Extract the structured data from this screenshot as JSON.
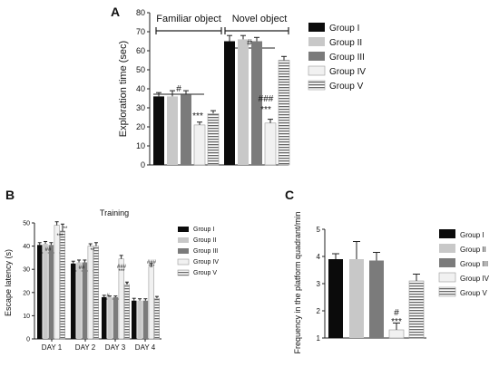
{
  "figure": {
    "panel_labels": [
      "A",
      "B",
      "C"
    ],
    "group_colors": [
      "#0b0b0b",
      "#c8c8c8",
      "#7b7b7b",
      "#f1f1f1",
      "#d6d6d6"
    ]
  },
  "chart_data": [
    {
      "type": "bar",
      "panel": "A",
      "ylabel": "Exploration time (sec)",
      "ylim": [
        0,
        80
      ],
      "yticks": [
        "0",
        "10",
        "20",
        "30",
        "40",
        "50",
        "60",
        "70",
        "80"
      ],
      "categories": [
        "Familiar object",
        "Novel object"
      ],
      "legend": [
        "Group I",
        "Group II",
        "Group III",
        "Group IV",
        "Group V"
      ],
      "legend_position": "right",
      "series": [
        {
          "name": "Group I",
          "values": [
            36,
            65
          ],
          "errors": [
            2,
            3
          ]
        },
        {
          "name": "Group II",
          "values": [
            36,
            66
          ],
          "errors": [
            3,
            2
          ]
        },
        {
          "name": "Group III",
          "values": [
            37,
            65
          ],
          "errors": [
            2,
            2
          ]
        },
        {
          "name": "Group IV",
          "values": [
            21,
            22
          ],
          "errors": [
            1.5,
            2
          ]
        },
        {
          "name": "Group V",
          "values": [
            27,
            55
          ],
          "errors": [
            1.5,
            2
          ]
        }
      ],
      "annotations": [
        {
          "text": "#",
          "group": 0
        },
        {
          "text": "***",
          "group": 0
        },
        {
          "text": "#",
          "group": 1
        },
        {
          "text": "###",
          "group": 1
        },
        {
          "text": "***",
          "group": 1
        }
      ]
    },
    {
      "type": "bar",
      "panel": "B",
      "title": "Training",
      "ylabel": "Escape latency (s)",
      "ylim": [
        0,
        50
      ],
      "yticks": [
        "0",
        "10",
        "20",
        "30",
        "40",
        "50"
      ],
      "categories": [
        "DAY 1",
        "DAY 2",
        "DAY 3",
        "DAY 4"
      ],
      "legend": [
        "Group I",
        "Group II",
        "Group III",
        "Group IV",
        "Group V"
      ],
      "legend_position": "right",
      "series": [
        {
          "name": "Group I",
          "values": [
            40.5,
            32.5,
            18,
            16.5
          ],
          "errors": [
            1,
            1,
            0.8,
            1
          ]
        },
        {
          "name": "Group II",
          "values": [
            41,
            33,
            18,
            16.5
          ],
          "errors": [
            1,
            1,
            0.5,
            0.8
          ]
        },
        {
          "name": "Group III",
          "values": [
            40.5,
            33,
            18,
            16.5
          ],
          "errors": [
            1,
            1,
            0.5,
            0.8
          ]
        },
        {
          "name": "Group IV",
          "values": [
            49,
            40,
            34.5,
            31
          ],
          "errors": [
            1.5,
            1,
            1.5,
            1.5
          ]
        },
        {
          "name": "Group V",
          "values": [
            46.5,
            40,
            23.5,
            17.5
          ],
          "errors": [
            3,
            1.5,
            1,
            0.8
          ]
        }
      ],
      "annotations": [
        {
          "text": "##",
          "group": 0
        },
        {
          "text": "***",
          "group": 0
        },
        {
          "text": "**",
          "group": 0
        },
        {
          "text": "##",
          "group": 1
        },
        {
          "text": "**",
          "group": 1
        },
        {
          "text": "#",
          "group": 2
        },
        {
          "text": "###",
          "group": 2
        },
        {
          "text": "***",
          "group": 2
        },
        {
          "text": "*",
          "group": 2
        },
        {
          "text": "###",
          "group": 3
        },
        {
          "text": "***",
          "group": 3
        }
      ]
    },
    {
      "type": "bar",
      "panel": "C",
      "ylabel": "Frequency in the platform quadrant/min",
      "ylim": [
        1,
        5
      ],
      "yticks": [
        "1",
        "2",
        "3",
        "4",
        "5"
      ],
      "categories": [
        "Group I",
        "Group II",
        "Group III",
        "Group IV",
        "Group V"
      ],
      "legend": [
        "Group I",
        "Group II",
        "Group III",
        "Group IV",
        "Group V"
      ],
      "legend_position": "right",
      "values": [
        3.9,
        3.9,
        3.85,
        1.3,
        3.1
      ],
      "errors": [
        0.2,
        0.65,
        0.3,
        0.25,
        0.25
      ],
      "annotations": [
        {
          "text": "#"
        },
        {
          "text": "***"
        }
      ]
    }
  ]
}
